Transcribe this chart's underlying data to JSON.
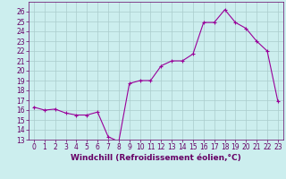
{
  "x": [
    0,
    1,
    2,
    3,
    4,
    5,
    6,
    7,
    8,
    9,
    10,
    11,
    12,
    13,
    14,
    15,
    16,
    17,
    18,
    19,
    20,
    21,
    22,
    23
  ],
  "y": [
    16.3,
    16.0,
    16.1,
    15.7,
    15.5,
    15.5,
    15.8,
    13.3,
    12.8,
    18.7,
    19.0,
    19.0,
    20.5,
    21.0,
    21.0,
    21.7,
    24.9,
    24.9,
    26.2,
    24.9,
    24.3,
    23.0,
    22.0,
    16.9
  ],
  "line_color": "#990099",
  "marker": "+",
  "marker_size": 3,
  "marker_linewidth": 0.8,
  "line_width": 0.8,
  "bg_color": "#cceeee",
  "grid_color": "#aacccc",
  "xlabel": "Windchill (Refroidissement éolien,°C)",
  "ylim": [
    13,
    27
  ],
  "xlim": [
    -0.5,
    23.5
  ],
  "yticks": [
    13,
    14,
    15,
    16,
    17,
    18,
    19,
    20,
    21,
    22,
    23,
    24,
    25,
    26
  ],
  "xticks": [
    0,
    1,
    2,
    3,
    4,
    5,
    6,
    7,
    8,
    9,
    10,
    11,
    12,
    13,
    14,
    15,
    16,
    17,
    18,
    19,
    20,
    21,
    22,
    23
  ],
  "tick_fontsize": 5.5,
  "xlabel_fontsize": 6.5,
  "axis_color": "#660066",
  "figsize": [
    3.2,
    2.0
  ],
  "dpi": 100
}
